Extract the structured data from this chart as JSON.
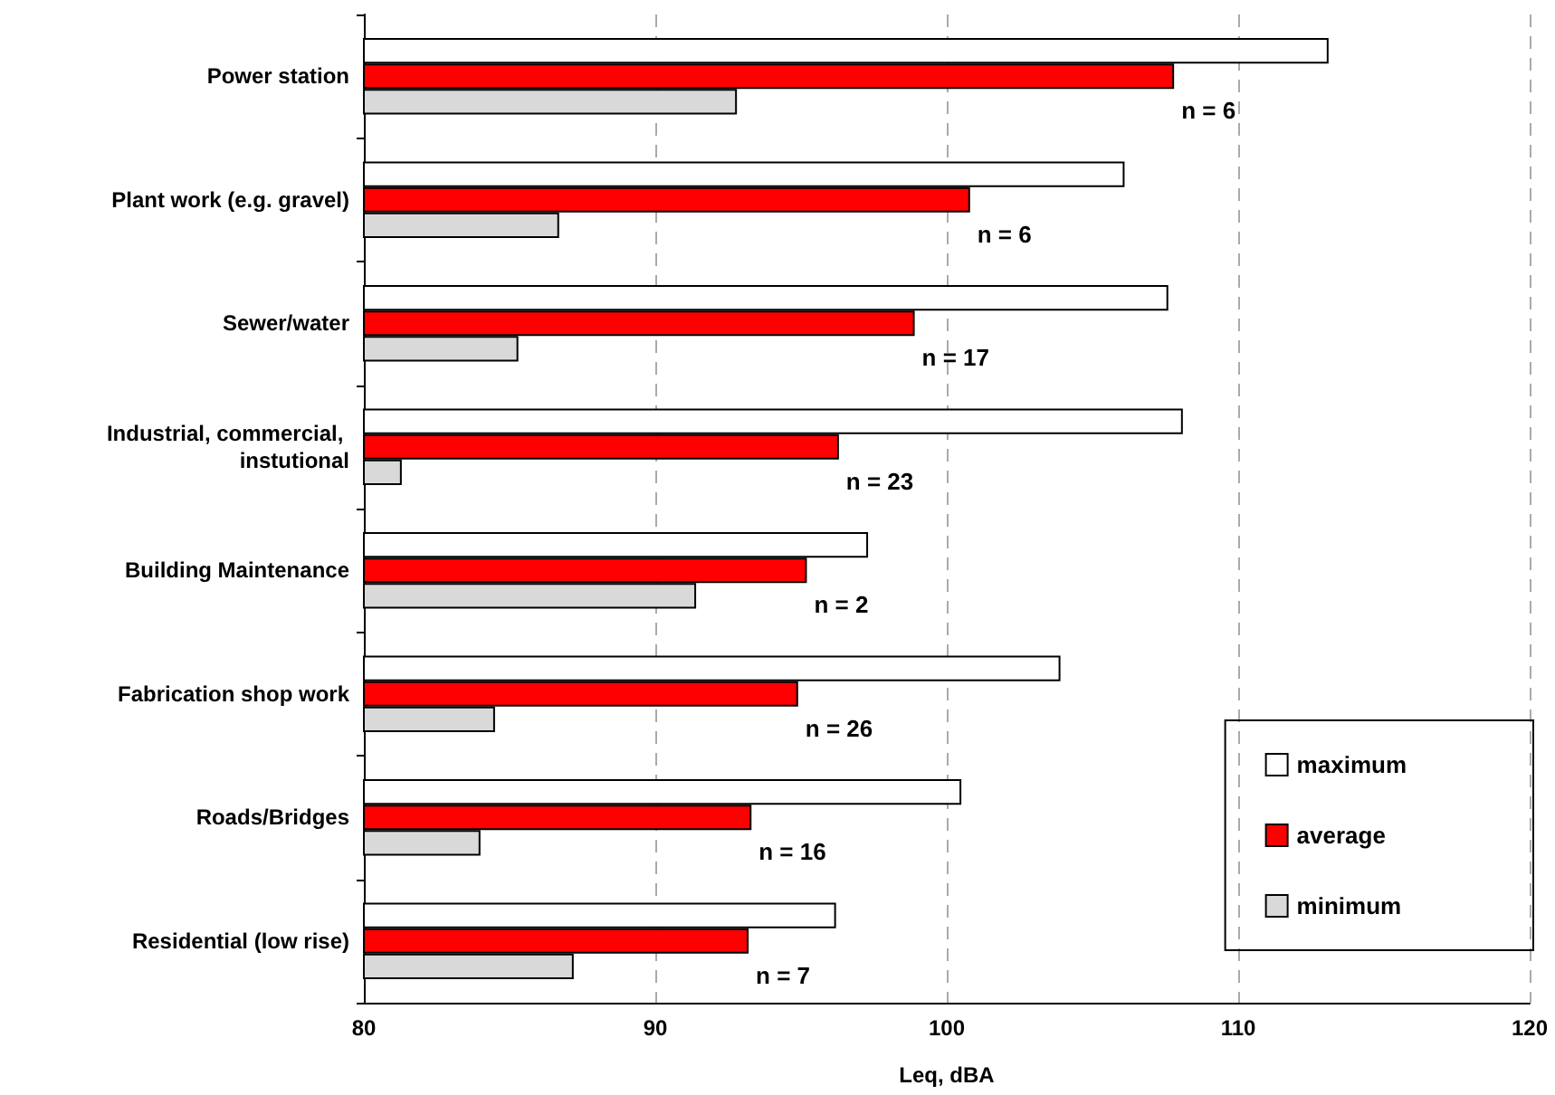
{
  "chart_data": {
    "type": "bar",
    "orientation": "horizontal",
    "xlabel": "Leq, dBA",
    "categories": [
      "Power station",
      "Plant work (e.g. gravel)",
      "Sewer/water",
      "Industrial, commercial, instutional",
      "Building Maintenance",
      "Fabrication shop work",
      "Roads/Bridges",
      "Residential (low rise)"
    ],
    "series": [
      {
        "name": "maximum",
        "color": "#ffffff",
        "values": [
          113.1,
          106.1,
          107.6,
          108.1,
          97.3,
          103.9,
          100.5,
          96.2
        ]
      },
      {
        "name": "average",
        "color": "#ff0000",
        "values": [
          107.8,
          100.8,
          98.9,
          96.3,
          95.2,
          94.9,
          93.3,
          93.2
        ]
      },
      {
        "name": "minimum",
        "color": "#d9d9d9",
        "values": [
          92.8,
          86.7,
          85.3,
          81.3,
          91.4,
          84.5,
          84.0,
          87.2
        ]
      }
    ],
    "xlim": [
      80,
      120
    ],
    "xticks": [
      80,
      90,
      100,
      110,
      120
    ],
    "grid": "x",
    "legend": "bottom right",
    "annotations": [
      "n = 6",
      "n = 6",
      "n = 17",
      "n = 23",
      "n = 2",
      "n = 26",
      "n = 16",
      "n = 7"
    ]
  }
}
